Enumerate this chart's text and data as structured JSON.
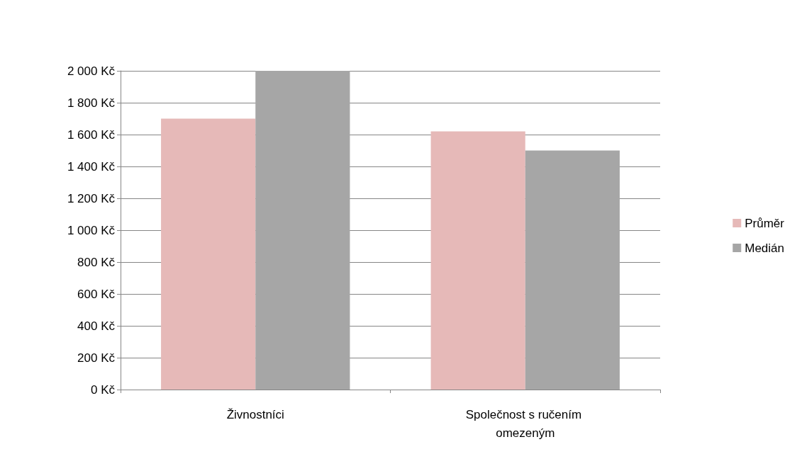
{
  "chart_data": {
    "type": "bar",
    "categories": [
      "Živnostníci",
      "Společnost s ručením omezeným"
    ],
    "series": [
      {
        "name": "Průměr",
        "color": "#e6b9b8",
        "values": [
          1700,
          1620
        ]
      },
      {
        "name": "Medián",
        "color": "#a6a6a6",
        "values": [
          2000,
          1500
        ]
      }
    ],
    "ylim": [
      0,
      2000
    ],
    "yticks": [
      {
        "value": 0,
        "label": "0 Kč"
      },
      {
        "value": 200,
        "label": "200 Kč"
      },
      {
        "value": 400,
        "label": "400 Kč"
      },
      {
        "value": 600,
        "label": "600 Kč"
      },
      {
        "value": 800,
        "label": "800 Kč"
      },
      {
        "value": 1000,
        "label": "1 000 Kč"
      },
      {
        "value": 1200,
        "label": "1 200 Kč"
      },
      {
        "value": 1400,
        "label": "1 400 Kč"
      },
      {
        "value": 1600,
        "label": "1 600 Kč"
      },
      {
        "value": 1800,
        "label": "1 800 Kč"
      },
      {
        "value": 2000,
        "label": "2 000 Kč"
      }
    ],
    "grid": "y",
    "legend": "right"
  }
}
